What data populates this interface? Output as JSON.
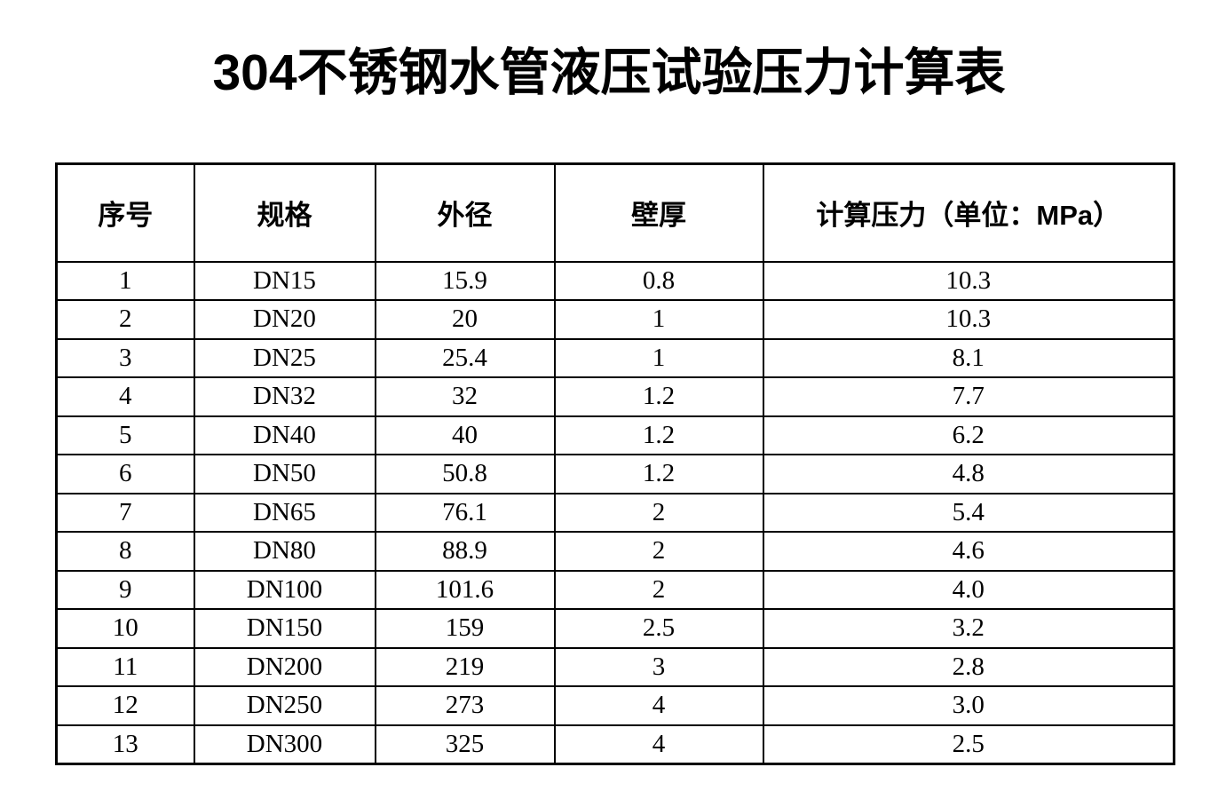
{
  "document": {
    "title": "304不锈钢水管液压试验压力计算表"
  },
  "colors": {
    "text": "#000000",
    "background": "#ffffff",
    "table_border": "#000000"
  },
  "table": {
    "columns": [
      "序号",
      "规格",
      "外径",
      "壁厚",
      "计算压力（单位：MPa）"
    ],
    "rows": [
      [
        "1",
        "DN15",
        "15.9",
        "0.8",
        "10.3"
      ],
      [
        "2",
        "DN20",
        "20",
        "1",
        "10.3"
      ],
      [
        "3",
        "DN25",
        "25.4",
        "1",
        "8.1"
      ],
      [
        "4",
        "DN32",
        "32",
        "1.2",
        "7.7"
      ],
      [
        "5",
        "DN40",
        "40",
        "1.2",
        "6.2"
      ],
      [
        "6",
        "DN50",
        "50.8",
        "1.2",
        "4.8"
      ],
      [
        "7",
        "DN65",
        "76.1",
        "2",
        "5.4"
      ],
      [
        "8",
        "DN80",
        "88.9",
        "2",
        "4.6"
      ],
      [
        "9",
        "DN100",
        "101.6",
        "2",
        "4.0"
      ],
      [
        "10",
        "DN150",
        "159",
        "2.5",
        "3.2"
      ],
      [
        "11",
        "DN200",
        "219",
        "3",
        "2.8"
      ],
      [
        "12",
        "DN250",
        "273",
        "4",
        "3.0"
      ],
      [
        "13",
        "DN300",
        "325",
        "4",
        "2.5"
      ]
    ]
  }
}
